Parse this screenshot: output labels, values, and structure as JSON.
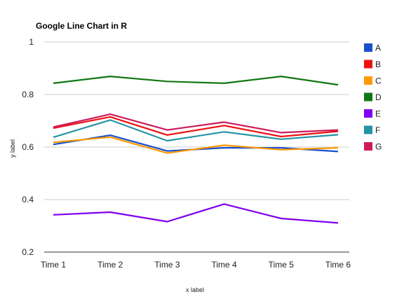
{
  "chart_data": {
    "type": "line",
    "title": "Google Line Chart in R",
    "xlabel": "x label",
    "ylabel": "y label",
    "categories": [
      "Time 1",
      "Time 2",
      "Time 3",
      "Time 4",
      "Time 5",
      "Time 6"
    ],
    "ylim": [
      0.2,
      1
    ],
    "yticks": [
      "0.2",
      "0.4",
      "0.6",
      "0.8",
      "1"
    ],
    "grid": true,
    "legend_position": "right",
    "series": [
      {
        "name": "A",
        "color": "#1a4fcc",
        "values": [
          0.61,
          0.645,
          0.585,
          0.597,
          0.597,
          0.583
        ]
      },
      {
        "name": "B",
        "color": "#ee1111",
        "values": [
          0.672,
          0.715,
          0.646,
          0.682,
          0.64,
          0.66
        ]
      },
      {
        "name": "C",
        "color": "#ff9900",
        "values": [
          0.618,
          0.638,
          0.577,
          0.607,
          0.59,
          0.597
        ]
      },
      {
        "name": "D",
        "color": "#117711",
        "values": [
          0.843,
          0.869,
          0.85,
          0.843,
          0.869,
          0.837
        ]
      },
      {
        "name": "E",
        "color": "#7f00ee",
        "values": [
          0.342,
          0.352,
          0.316,
          0.383,
          0.328,
          0.311
        ]
      },
      {
        "name": "F",
        "color": "#2494a4",
        "values": [
          0.637,
          0.703,
          0.624,
          0.658,
          0.63,
          0.647
        ]
      },
      {
        "name": "G",
        "color": "#cc1b5c",
        "values": [
          0.676,
          0.725,
          0.665,
          0.695,
          0.655,
          0.665
        ]
      }
    ]
  }
}
